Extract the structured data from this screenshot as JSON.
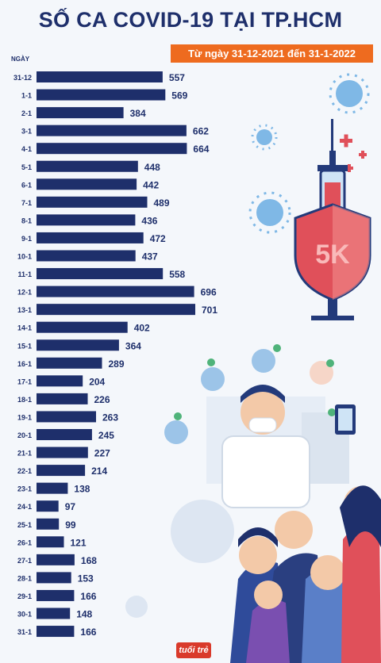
{
  "header": {
    "title": "SỐ CA COVID-19 TẠI TP.HCM",
    "subtitle": "Từ ngày 31-12-2021 đến 31-1-2022"
  },
  "badge_text": "5K",
  "logo_text": "tuổi trẻ",
  "colors": {
    "bar": "#1e2f6b",
    "accent": "#ee6b1f",
    "text": "#1e2f6b"
  },
  "icons": [
    "virus-icon",
    "syringe-icon",
    "shield-icon",
    "doctor-icon",
    "people-icon",
    "checkmark-icon",
    "hand-wash-icon",
    "phone-icon"
  ],
  "chart_data": {
    "type": "bar",
    "orientation": "horizontal",
    "title": "SỐ CA COVID-19 TẠI TP.HCM",
    "subtitle": "Từ ngày 31-12-2021 đến 31-1-2022",
    "ylabel": "NGÀY",
    "xlabel": "",
    "categories": [
      "31-12",
      "1-1",
      "2-1",
      "3-1",
      "4-1",
      "5-1",
      "6-1",
      "7-1",
      "8-1",
      "9-1",
      "10-1",
      "11-1",
      "12-1",
      "13-1",
      "14-1",
      "15-1",
      "16-1",
      "17-1",
      "18-1",
      "19-1",
      "20-1",
      "21-1",
      "22-1",
      "23-1",
      "24-1",
      "25-1",
      "26-1",
      "27-1",
      "28-1",
      "29-1",
      "30-1",
      "31-1"
    ],
    "values": [
      557,
      569,
      384,
      662,
      664,
      448,
      442,
      489,
      436,
      472,
      437,
      558,
      696,
      701,
      402,
      364,
      289,
      204,
      226,
      263,
      245,
      227,
      214,
      138,
      97,
      99,
      121,
      168,
      153,
      166,
      148,
      166
    ],
    "xlim": [
      0,
      701
    ],
    "grid": false,
    "legend": "none"
  }
}
